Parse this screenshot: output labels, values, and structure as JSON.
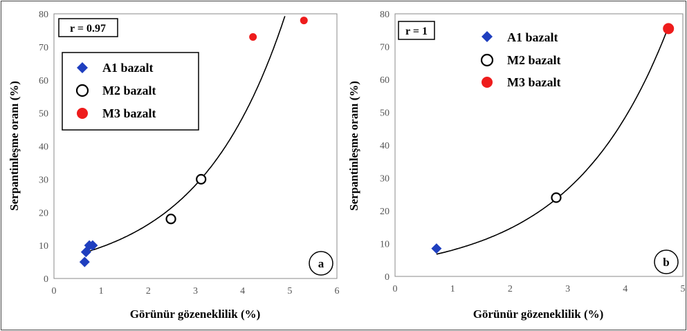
{
  "chart_data": [
    {
      "type": "scatter",
      "panel": "a",
      "corr_label": "r = 0.97",
      "xlabel": "Görünür gözeneklilik (%)",
      "ylabel": "Serpantinleşme oranı (%)",
      "xlim": [
        0,
        6
      ],
      "ylim": [
        0,
        80
      ],
      "xticks": [
        "0",
        "1",
        "2",
        "3",
        "4",
        "5",
        "6"
      ],
      "yticks": [
        "0",
        "10",
        "20",
        "30",
        "40",
        "50",
        "60",
        "70",
        "80"
      ],
      "legend_position": "upper-left",
      "series": [
        {
          "name": "A1 bazalt",
          "marker": "diamond",
          "color": "#1f3fbf",
          "points": [
            [
              0.65,
              5
            ],
            [
              0.68,
              8
            ],
            [
              0.75,
              10
            ],
            [
              0.82,
              10
            ]
          ]
        },
        {
          "name": "M2 bazalt",
          "marker": "open-circle",
          "color": "#000000",
          "points": [
            [
              2.48,
              18
            ],
            [
              3.12,
              30
            ]
          ]
        },
        {
          "name": "M3 bazalt",
          "marker": "filled-circle",
          "color": "#ee1c1c",
          "points": [
            [
              4.22,
              73
            ],
            [
              5.3,
              78
            ]
          ]
        }
      ],
      "fit": {
        "type": "exponential",
        "a": 5.5,
        "b": 0.545,
        "x_range": [
          0.65,
          4.95
        ]
      }
    },
    {
      "type": "scatter",
      "panel": "b",
      "corr_label": "r = 1",
      "xlabel": "Görünür gözeneklilik (%)",
      "ylabel": "Serpantinleşme oranı (%)",
      "xlim": [
        0,
        5
      ],
      "ylim": [
        0,
        80
      ],
      "xticks": [
        "0",
        "1",
        "2",
        "3",
        "4",
        "5"
      ],
      "yticks": [
        "0",
        "10",
        "20",
        "30",
        "40",
        "50",
        "60",
        "70",
        "80"
      ],
      "legend_position": "upper-left",
      "series": [
        {
          "name": "A1 bazalt",
          "marker": "diamond",
          "color": "#1f3fbf",
          "points": [
            [
              0.72,
              8.5
            ]
          ]
        },
        {
          "name": "M2 bazalt",
          "marker": "open-circle",
          "color": "#000000",
          "points": [
            [
              2.8,
              24
            ]
          ]
        },
        {
          "name": "M3 bazalt",
          "marker": "filled-circle",
          "color": "#ee1c1c",
          "points": [
            [
              4.75,
              75.5
            ]
          ]
        }
      ],
      "fit": {
        "type": "exponential",
        "a": 4.4,
        "b": 0.6,
        "x_range": [
          0.72,
          4.75
        ]
      }
    }
  ]
}
